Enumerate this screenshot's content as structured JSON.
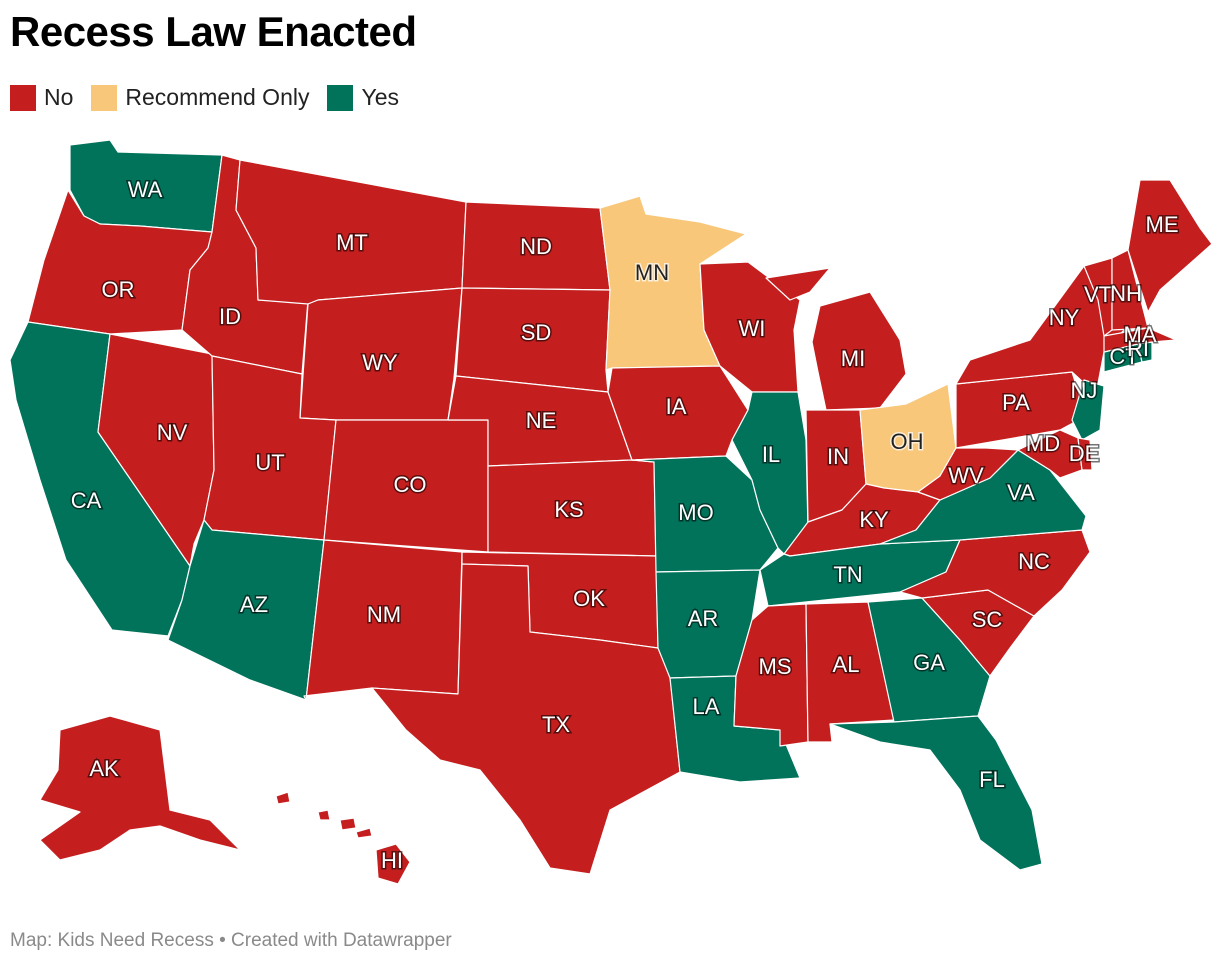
{
  "title": "Recess Law Enacted",
  "legend": [
    {
      "label": "No",
      "color": "#c41e1e"
    },
    {
      "label": "Recommend Only",
      "color": "#f8c77a"
    },
    {
      "label": "Yes",
      "color": "#00735a"
    }
  ],
  "colors": {
    "No": "#c41e1e",
    "Recommend Only": "#f8c77a",
    "Yes": "#00735a"
  },
  "states": [
    {
      "abbr": "WA",
      "status": "Yes"
    },
    {
      "abbr": "OR",
      "status": "No"
    },
    {
      "abbr": "CA",
      "status": "Yes"
    },
    {
      "abbr": "NV",
      "status": "No"
    },
    {
      "abbr": "ID",
      "status": "No"
    },
    {
      "abbr": "MT",
      "status": "No"
    },
    {
      "abbr": "WY",
      "status": "No"
    },
    {
      "abbr": "UT",
      "status": "No"
    },
    {
      "abbr": "AZ",
      "status": "Yes"
    },
    {
      "abbr": "CO",
      "status": "No"
    },
    {
      "abbr": "NM",
      "status": "No"
    },
    {
      "abbr": "ND",
      "status": "No"
    },
    {
      "abbr": "SD",
      "status": "No"
    },
    {
      "abbr": "NE",
      "status": "No"
    },
    {
      "abbr": "KS",
      "status": "No"
    },
    {
      "abbr": "OK",
      "status": "No"
    },
    {
      "abbr": "TX",
      "status": "No"
    },
    {
      "abbr": "MN",
      "status": "Recommend Only"
    },
    {
      "abbr": "IA",
      "status": "No"
    },
    {
      "abbr": "MO",
      "status": "Yes"
    },
    {
      "abbr": "AR",
      "status": "Yes"
    },
    {
      "abbr": "LA",
      "status": "Yes"
    },
    {
      "abbr": "WI",
      "status": "No"
    },
    {
      "abbr": "IL",
      "status": "Yes"
    },
    {
      "abbr": "MI",
      "status": "No"
    },
    {
      "abbr": "IN",
      "status": "No"
    },
    {
      "abbr": "OH",
      "status": "Recommend Only"
    },
    {
      "abbr": "KY",
      "status": "No"
    },
    {
      "abbr": "TN",
      "status": "Yes"
    },
    {
      "abbr": "MS",
      "status": "No"
    },
    {
      "abbr": "AL",
      "status": "No"
    },
    {
      "abbr": "GA",
      "status": "Yes"
    },
    {
      "abbr": "FL",
      "status": "Yes"
    },
    {
      "abbr": "SC",
      "status": "No"
    },
    {
      "abbr": "NC",
      "status": "No"
    },
    {
      "abbr": "VA",
      "status": "Yes"
    },
    {
      "abbr": "WV",
      "status": "No"
    },
    {
      "abbr": "PA",
      "status": "No"
    },
    {
      "abbr": "NY",
      "status": "No"
    },
    {
      "abbr": "NJ",
      "status": "Yes"
    },
    {
      "abbr": "MD",
      "status": "No"
    },
    {
      "abbr": "DE",
      "status": "No"
    },
    {
      "abbr": "CT",
      "status": "Yes"
    },
    {
      "abbr": "RI",
      "status": "Yes"
    },
    {
      "abbr": "MA",
      "status": "No"
    },
    {
      "abbr": "VT",
      "status": "No"
    },
    {
      "abbr": "NH",
      "status": "No"
    },
    {
      "abbr": "ME",
      "status": "No"
    },
    {
      "abbr": "AK",
      "status": "No"
    },
    {
      "abbr": "HI",
      "status": "No"
    }
  ],
  "footer": "Map: Kids Need Recess • Created with Datawrapper"
}
